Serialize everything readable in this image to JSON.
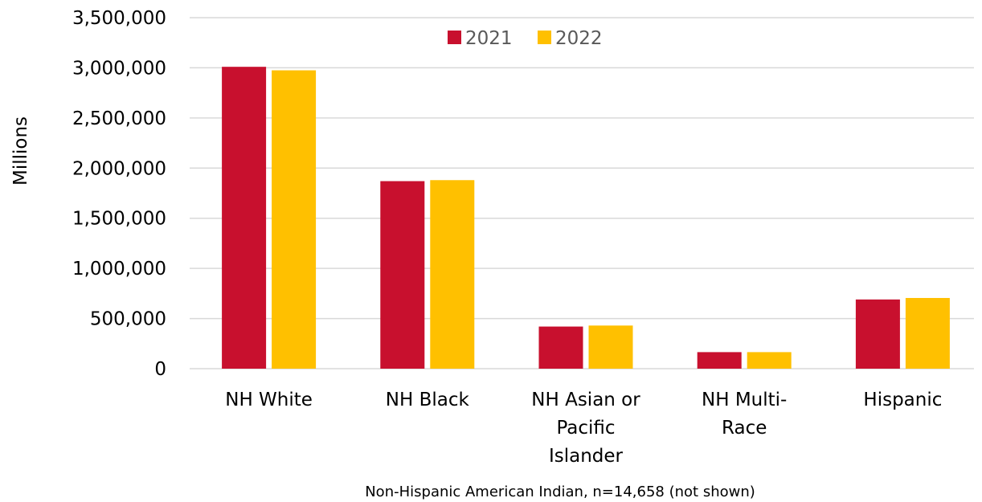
{
  "chart_data": {
    "type": "bar",
    "title": "",
    "xlabel": "",
    "ylabel": "Millions",
    "ylim": [
      0,
      3500000
    ],
    "yticks": [
      0,
      500000,
      1000000,
      1500000,
      2000000,
      2500000,
      3000000,
      3500000
    ],
    "ytick_labels": [
      "0",
      "500,000",
      "1,000,000",
      "1,500,000",
      "2,000,000",
      "2,500,000",
      "3,000,000",
      "3,500,000"
    ],
    "categories": [
      [
        "NH White"
      ],
      [
        "NH Black"
      ],
      [
        "NH Asian or",
        "Pacific",
        "Islander"
      ],
      [
        "NH Multi-",
        "Race"
      ],
      [
        "Hispanic"
      ]
    ],
    "series": [
      {
        "name": "2021",
        "color": "#C8102E",
        "values": [
          3010000,
          1870000,
          420000,
          165000,
          690000
        ]
      },
      {
        "name": "2022",
        "color": "#FFC000",
        "values": [
          2975000,
          1880000,
          430000,
          165000,
          705000
        ]
      }
    ],
    "grid": true,
    "legend_position": "top-center",
    "footnote": "Non-Hispanic American Indian, n=14,658 (not shown)"
  }
}
